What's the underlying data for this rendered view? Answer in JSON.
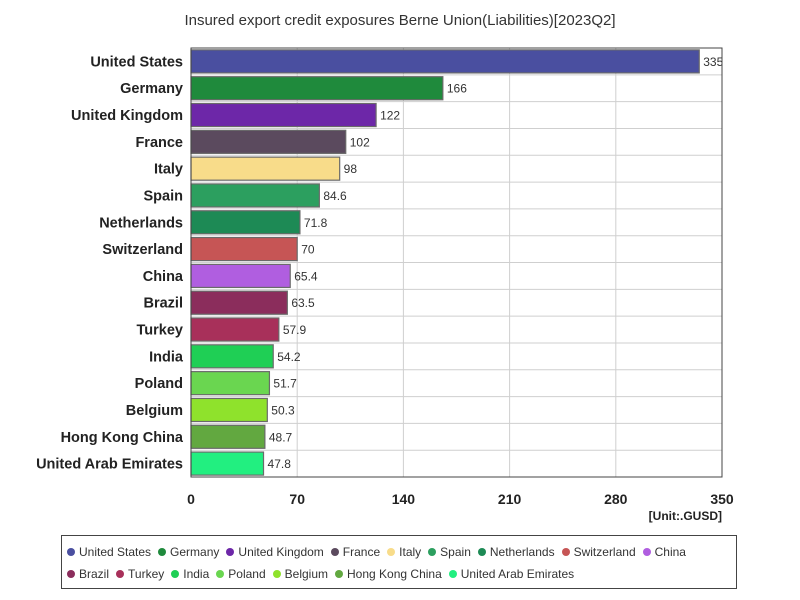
{
  "chart_data": {
    "type": "bar",
    "orientation": "horizontal",
    "title": "Insured export credit exposures Berne Union(Liabilities)[2023Q2]",
    "unit_label": "[Unit:.GUSD]",
    "xlim": [
      0,
      350
    ],
    "ticks": [
      "0",
      "70",
      "140",
      "210",
      "280",
      "350"
    ],
    "tick_values": [
      0,
      70,
      140,
      210,
      280,
      350
    ],
    "grid": true,
    "legend_position": "bottom",
    "categories": [
      "United States",
      "Germany",
      "United Kingdom",
      "France",
      "Italy",
      "Spain",
      "Netherlands",
      "Switzerland",
      "China",
      "Brazil",
      "Turkey",
      "India",
      "Poland",
      "Belgium",
      "Hong Kong China",
      "United Arab Emirates"
    ],
    "values": [
      335,
      166,
      122,
      102,
      98,
      84.6,
      71.8,
      70,
      65.4,
      63.5,
      57.9,
      54.2,
      51.7,
      50.3,
      48.7,
      47.8
    ],
    "value_labels": [
      "335",
      "166",
      "122",
      "102",
      "98",
      "84.6",
      "71.8",
      "70",
      "65.4",
      "63.5",
      "57.9",
      "54.2",
      "51.7",
      "50.3",
      "48.7",
      "47.8"
    ],
    "colors": [
      "#4a4fa0",
      "#1f8a3c",
      "#6d27a8",
      "#5b4a5e",
      "#f8dc8a",
      "#2c9f5f",
      "#1d8a55",
      "#c65555",
      "#b05ee0",
      "#8b2d5c",
      "#a8305a",
      "#1fcf55",
      "#6ad650",
      "#8fe22c",
      "#62a840",
      "#22ef80"
    ]
  }
}
